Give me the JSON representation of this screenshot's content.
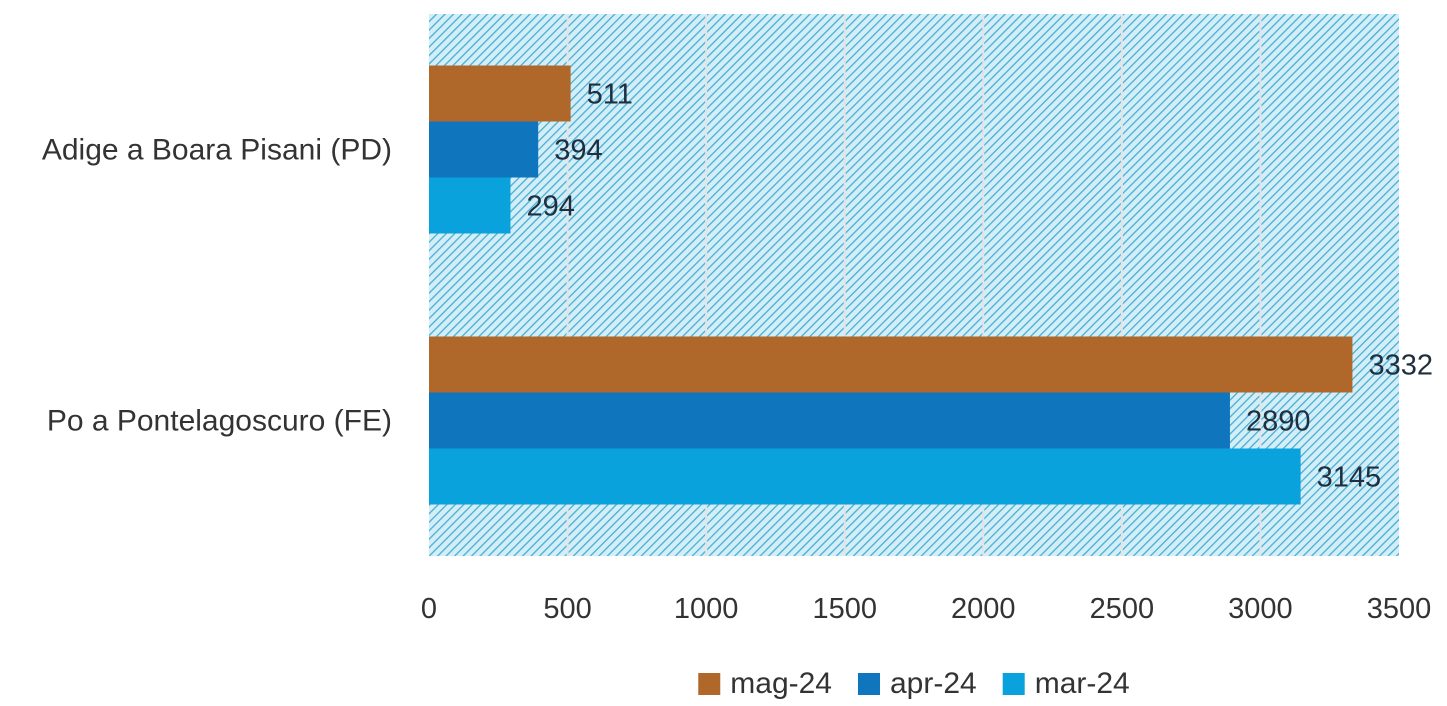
{
  "chart_data": {
    "type": "bar",
    "orientation": "horizontal",
    "categories": [
      "Adige a Boara Pisani (PD)",
      "Po a Pontelagoscuro (FE)"
    ],
    "series": [
      {
        "name": "mag-24",
        "color": "#b0672a",
        "values": [
          511,
          3332
        ]
      },
      {
        "name": "apr-24",
        "color": "#0f75bc",
        "values": [
          394,
          2890
        ]
      },
      {
        "name": "mar-24",
        "color": "#0aa2dc",
        "values": [
          294,
          3145
        ]
      }
    ],
    "xlim": [
      0,
      3500
    ],
    "xticks": [
      "0",
      "500",
      "1000",
      "1500",
      "2000",
      "2500",
      "3000",
      "3500"
    ],
    "grid": true,
    "legend_position": "bottom",
    "plot_background": "hatched light blue",
    "data_labels": true
  }
}
